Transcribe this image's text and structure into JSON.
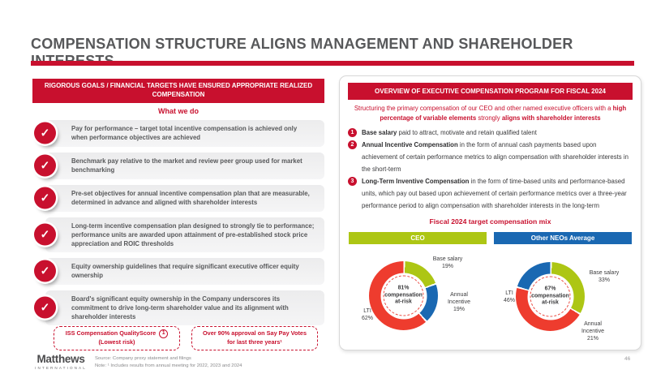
{
  "title": "COMPENSATION STRUCTURE ALIGNS MANAGEMENT AND SHAREHOLDER INTERESTS",
  "colors": {
    "brand_red": "#c8102e",
    "donut_red": "#ee3c2e",
    "green": "#adc614",
    "blue": "#1a68b2",
    "title_gray": "#57585a"
  },
  "left_panel": {
    "header": "RIGOROUS GOALS / FINANCIAL TARGETS HAVE ENSURED APPROPRIATE REALIZED COMPENSATION",
    "subheader": "What we do",
    "check_icon": "✓",
    "items": [
      "Pay for performance – target total incentive compensation is achieved only when performance objectives are achieved",
      "Benchmark pay relative to the market and review peer group used for market benchmarking",
      "Pre-set objectives for annual incentive compensation plan that are measurable, determined in advance and aligned with shareholder interests",
      "Long-term incentive compensation plan designed to strongly tie to performance; performance units are awarded upon attainment of pre-established stock price appreciation and ROIC thresholds",
      "Equity ownership guidelines that require significant executive officer equity ownership",
      "Board's significant equity ownership in the Company underscores its commitment to drive long-term shareholder value and its alignment with shareholder interests"
    ],
    "badges": [
      {
        "line1": "ISS Compensation QualityScore",
        "circle": "1",
        "line2": "(Lowest risk)"
      },
      {
        "line1": "Over 90% approval on Say Pay Votes",
        "line2": "for last three years¹"
      }
    ]
  },
  "right_panel": {
    "header": "OVERVIEW OF EXECUTIVE COMPENSATION PROGRAM FOR FISCAL 2024",
    "intro": {
      "t1": "Structuring the primary compensation of our CEO and other named executive officers with a ",
      "b1": "high percentage of variable elements",
      "t2": " strongly ",
      "b2": "aligns with shareholder interests"
    },
    "items": [
      {
        "num": "1",
        "bold": "Base salary",
        "text": " paid to attract, motivate and retain qualified talent"
      },
      {
        "num": "2",
        "bold": "Annual Incentive Compensation",
        "text": " in the form of annual cash payments based upon achievement of certain performance metrics to align compensation with shareholder interests in the short-term"
      },
      {
        "num": "3",
        "bold": "Long-Term Inventive Compensation",
        "text": " in the form of time-based units and performance-based units, which pay out based upon achievement of certain performance metrics over a three-year performance period to align compensation with shareholder interests in the long-term"
      }
    ],
    "mix_title": "Fiscal 2024 target compensation mix"
  },
  "chart_data": [
    {
      "type": "donut",
      "title": "CEO",
      "header_color": "#adc614",
      "center": {
        "pct": "81%",
        "line2": "compensation",
        "line3": "at-risk"
      },
      "segments": [
        {
          "label": "Base salary",
          "value": 19,
          "color": "#adc614",
          "display": "Base salary\n19%"
        },
        {
          "label": "Annual Incentive",
          "value": 19,
          "color": "#1a68b2",
          "display": "Annual\nIncentive\n19%"
        },
        {
          "label": "LTI",
          "value": 62,
          "color": "#ee3c2e",
          "display": "LTI\n62%"
        }
      ]
    },
    {
      "type": "donut",
      "title": "Other NEOs Average",
      "header_color": "#1a68b2",
      "center": {
        "pct": "67%",
        "line2": "compensation",
        "line3": "at-risk"
      },
      "segments": [
        {
          "label": "Base salary",
          "value": 33,
          "color": "#adc614",
          "display": "Base salary\n33%"
        },
        {
          "label": "LTI",
          "value": 46,
          "color": "#ee3c2e",
          "display": "LTI\n46%"
        },
        {
          "label": "Annual Incentive",
          "value": 21,
          "color": "#1a68b2",
          "display": "Annual\nIncentive\n21%"
        }
      ]
    }
  ],
  "footer": {
    "logo_line1": "Matthews",
    "logo_line2": "INTERNATIONAL",
    "source": "Source: Company proxy statement and filings",
    "note": "Note: ¹ Includes results from annual meeting for 2022, 2023 and 2024",
    "page": "46"
  }
}
